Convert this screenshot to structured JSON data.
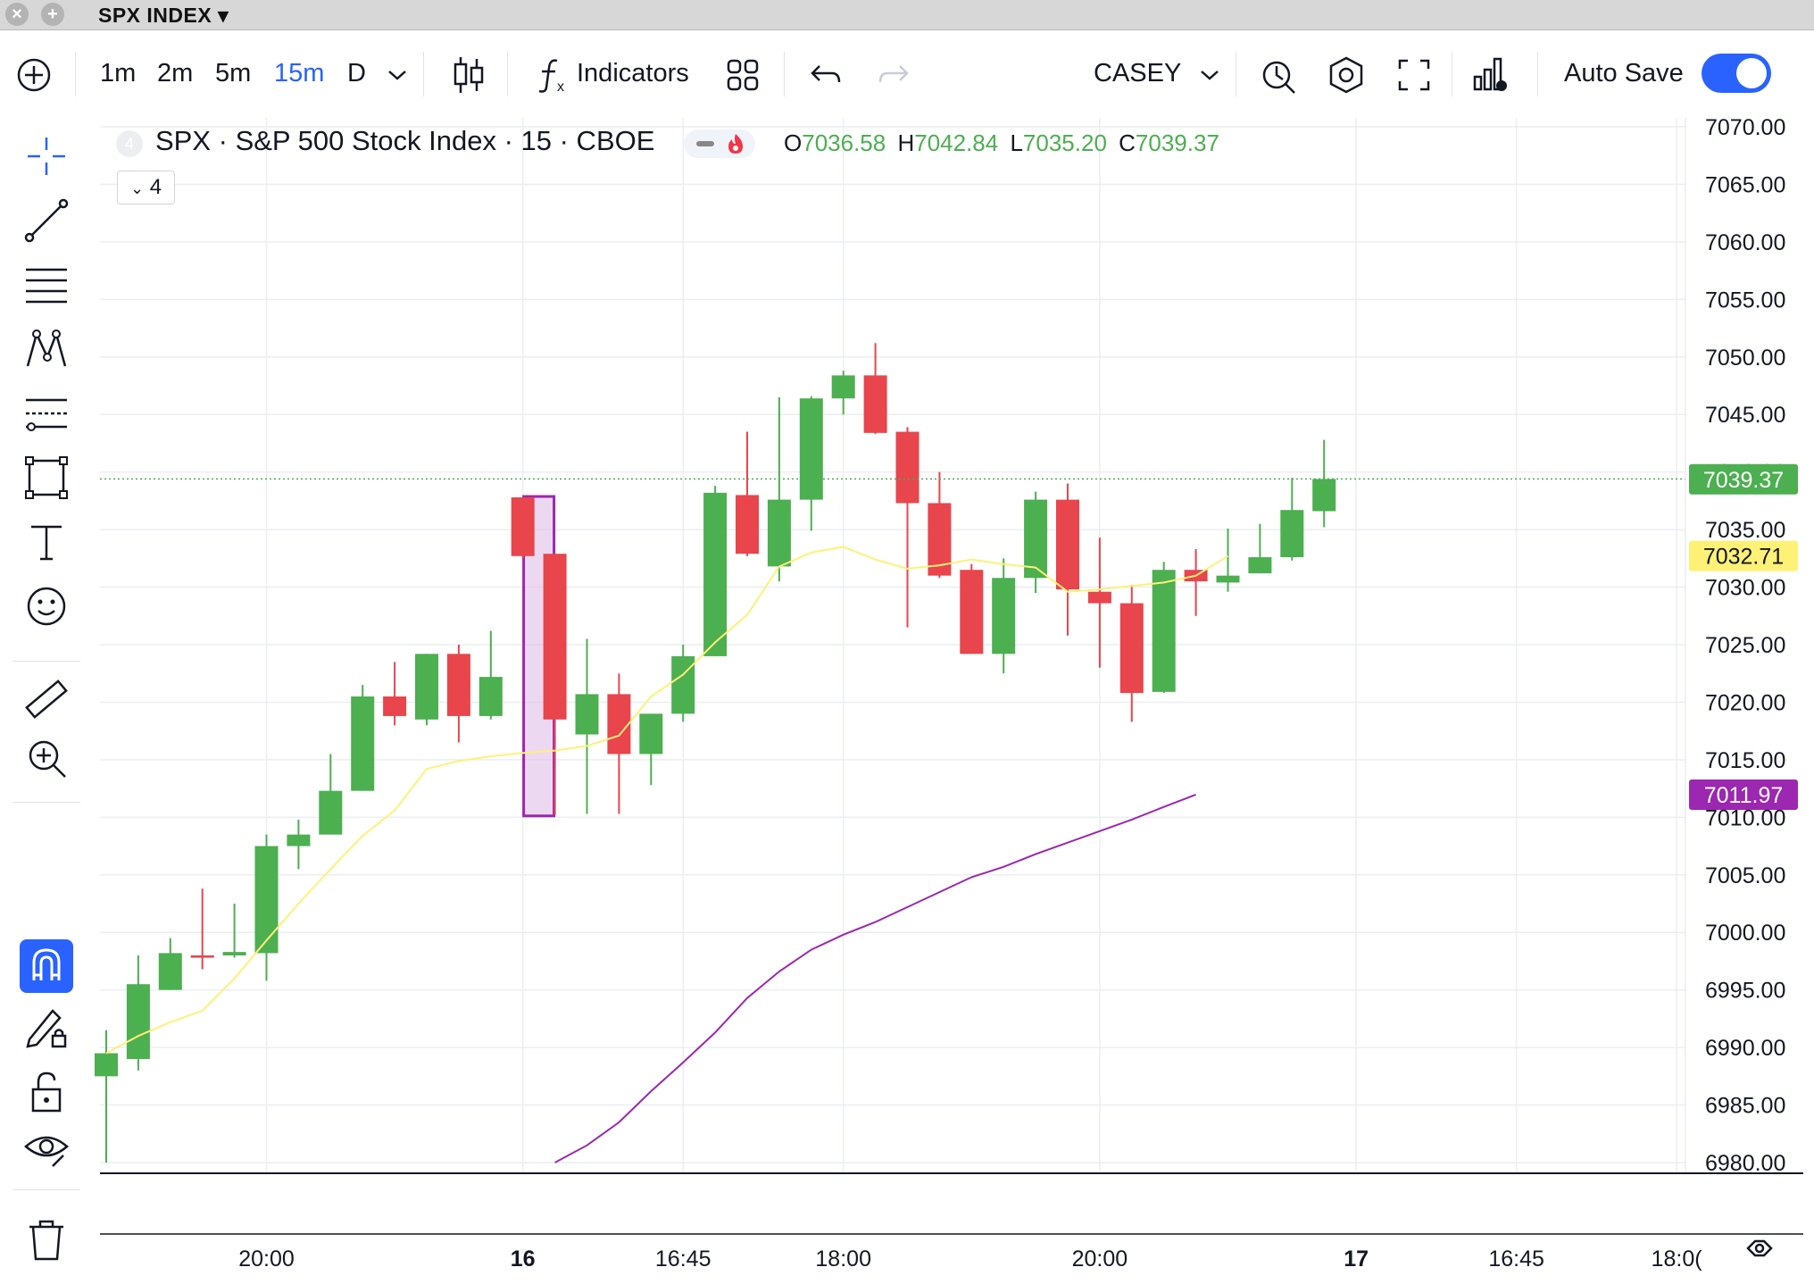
{
  "window": {
    "title": "SPX INDEX"
  },
  "toolbar": {
    "intervals": [
      "1m",
      "2m",
      "5m",
      "15m",
      "D"
    ],
    "active_interval": "15m",
    "indicators_label": "Indicators",
    "layout_name": "CASEY",
    "autosave_label": "Auto Save",
    "autosave_on": true
  },
  "legend": {
    "badge": "4",
    "title": "SPX · S&P 500 Stock Index · 15 · CBOE",
    "o_label": "O",
    "o": "7036.58",
    "h_label": "H",
    "h": "7042.84",
    "l_label": "L",
    "l": "7035.20",
    "c_label": "C",
    "c": "7039.37",
    "collapsed_count": "4"
  },
  "colors": {
    "up": "#4caf50",
    "down": "#e8454d",
    "accent": "#2962ff",
    "ma_fast": "#fff176",
    "ma_slow": "#9c27b0"
  },
  "icons": [
    "plus-circle-icon",
    "candles-icon",
    "function-icon",
    "layout-grid-icon",
    "undo-icon",
    "redo-icon",
    "chevron-down-icon",
    "alert-icon",
    "settings-hex-icon",
    "fullscreen-icon",
    "chart-bars-icon",
    "crosshair-icon",
    "trend-line-icon",
    "parallel-lines-icon",
    "pattern-icon",
    "fib-icon",
    "rectangle-icon",
    "text-icon",
    "emoji-icon",
    "ruler-icon",
    "zoom-in-icon",
    "magnet-icon",
    "pencil-lock-icon",
    "unlock-icon",
    "eye-icon",
    "trash-icon",
    "gear-icon"
  ],
  "chart_data": {
    "type": "candlestick",
    "price_axis": {
      "min": 6980,
      "max": 7070,
      "step": 5,
      "ticks": [
        "7070.00",
        "7065.00",
        "7060.00",
        "7055.00",
        "7050.00",
        "7045.00",
        "7040.00",
        "7035.00",
        "7030.00",
        "7025.00",
        "7020.00",
        "7015.00",
        "7010.00",
        "7005.00",
        "7000.00",
        "6995.00",
        "6990.00",
        "6985.00",
        "6980.00"
      ]
    },
    "time_axis": {
      "labels": [
        {
          "text": "20:00",
          "bar": 5,
          "bold": false
        },
        {
          "text": "16",
          "bar": 13,
          "bold": true
        },
        {
          "text": "16:45",
          "bar": 18,
          "bold": false
        },
        {
          "text": "18:00",
          "bar": 23,
          "bold": false
        },
        {
          "text": "20:00",
          "bar": 31,
          "bold": false
        },
        {
          "text": "17",
          "bar": 39,
          "bold": true
        },
        {
          "text": "16:45",
          "bar": 44,
          "bold": false
        },
        {
          "text": "18:0(",
          "bar": 49,
          "bold": false
        }
      ]
    },
    "last_price_label": "7039.37",
    "ma_fast_label": "7032.71",
    "ma_slow_label": "7011.97",
    "highlight_bars": [
      13,
      14
    ],
    "candles": [
      {
        "o": 6987.5,
        "h": 6991.5,
        "l": 6980.0,
        "c": 6989.5
      },
      {
        "o": 6989.0,
        "h": 6998.0,
        "l": 6988.0,
        "c": 6995.5
      },
      {
        "o": 6995.0,
        "h": 6999.5,
        "l": 6995.0,
        "c": 6998.2
      },
      {
        "o": 6998.0,
        "h": 7003.8,
        "l": 6996.8,
        "c": 6997.8
      },
      {
        "o": 6998.0,
        "h": 7002.5,
        "l": 6997.8,
        "c": 6998.3
      },
      {
        "o": 6998.2,
        "h": 7008.5,
        "l": 6995.8,
        "c": 7007.5
      },
      {
        "o": 7007.5,
        "h": 7009.8,
        "l": 7005.5,
        "c": 7008.5
      },
      {
        "o": 7008.5,
        "h": 7015.5,
        "l": 7008.5,
        "c": 7012.3
      },
      {
        "o": 7012.3,
        "h": 7021.5,
        "l": 7012.3,
        "c": 7020.5
      },
      {
        "o": 7020.5,
        "h": 7023.5,
        "l": 7018.0,
        "c": 7018.8
      },
      {
        "o": 7018.5,
        "h": 7024.2,
        "l": 7018.0,
        "c": 7024.2
      },
      {
        "o": 7024.2,
        "h": 7025.0,
        "l": 7016.5,
        "c": 7018.8
      },
      {
        "o": 7018.8,
        "h": 7026.2,
        "l": 7018.5,
        "c": 7022.2
      },
      {
        "o": 7037.8,
        "h": 7037.8,
        "l": 7032.5,
        "c": 7032.7
      },
      {
        "o": 7032.9,
        "h": 7032.9,
        "l": 7010.2,
        "c": 7018.5
      },
      {
        "o": 7017.2,
        "h": 7025.5,
        "l": 7010.3,
        "c": 7020.7
      },
      {
        "o": 7020.7,
        "h": 7022.5,
        "l": 7010.3,
        "c": 7015.5
      },
      {
        "o": 7015.5,
        "h": 7019.0,
        "l": 7012.8,
        "c": 7019.0
      },
      {
        "o": 7019.0,
        "h": 7025.0,
        "l": 7018.3,
        "c": 7024.0
      },
      {
        "o": 7024.0,
        "h": 7038.8,
        "l": 7024.0,
        "c": 7038.2
      },
      {
        "o": 7038.0,
        "h": 7043.5,
        "l": 7032.7,
        "c": 7032.9
      },
      {
        "o": 7031.8,
        "h": 7046.5,
        "l": 7030.5,
        "c": 7037.6
      },
      {
        "o": 7037.6,
        "h": 7046.6,
        "l": 7034.9,
        "c": 7046.4
      },
      {
        "o": 7046.4,
        "h": 7048.8,
        "l": 7045.0,
        "c": 7048.4
      },
      {
        "o": 7048.4,
        "h": 7051.2,
        "l": 7043.3,
        "c": 7043.4
      },
      {
        "o": 7043.5,
        "h": 7043.9,
        "l": 7026.5,
        "c": 7037.3
      },
      {
        "o": 7037.3,
        "h": 7040.0,
        "l": 7030.8,
        "c": 7031.0
      },
      {
        "o": 7031.5,
        "h": 7032.0,
        "l": 7024.2,
        "c": 7024.2
      },
      {
        "o": 7024.2,
        "h": 7032.5,
        "l": 7022.5,
        "c": 7030.8
      },
      {
        "o": 7030.8,
        "h": 7038.3,
        "l": 7029.5,
        "c": 7037.6
      },
      {
        "o": 7037.6,
        "h": 7039.0,
        "l": 7025.8,
        "c": 7029.8
      },
      {
        "o": 7029.6,
        "h": 7034.3,
        "l": 7023.0,
        "c": 7028.6
      },
      {
        "o": 7028.6,
        "h": 7030.2,
        "l": 7018.3,
        "c": 7020.8
      },
      {
        "o": 7020.9,
        "h": 7032.2,
        "l": 7020.8,
        "c": 7031.5
      },
      {
        "o": 7031.5,
        "h": 7033.3,
        "l": 7027.5,
        "c": 7030.5
      },
      {
        "o": 7030.4,
        "h": 7035.1,
        "l": 7029.6,
        "c": 7031.0
      },
      {
        "o": 7031.2,
        "h": 7035.5,
        "l": 7031.2,
        "c": 7032.6
      },
      {
        "o": 7032.6,
        "h": 7039.5,
        "l": 7032.3,
        "c": 7036.7
      },
      {
        "o": 7036.6,
        "h": 7042.8,
        "l": 7035.2,
        "c": 7039.4
      }
    ],
    "ma_fast": {
      "start": 0,
      "values": [
        6989.5,
        6991.0,
        6992.2,
        6993.2,
        6996.0,
        6999.3,
        7002.5,
        7005.5,
        7008.4,
        7010.6,
        7014.2,
        7014.9,
        7015.3,
        7015.6,
        7015.8,
        7016.2,
        7017.1,
        7020.5,
        7022.4,
        7025.2,
        7027.6,
        7031.8,
        7033.0,
        7033.5,
        7032.4,
        7031.6,
        7031.9,
        7032.4,
        7032.0,
        7031.7,
        7029.6,
        7029.8,
        7030.1,
        7030.4,
        7031.0,
        7032.7
      ]
    },
    "ma_slow": {
      "start": 14,
      "values": [
        6980.0,
        6981.5,
        6983.5,
        6986.2,
        6988.7,
        6991.3,
        6994.3,
        6996.6,
        6998.5,
        6999.8,
        7000.9,
        7002.2,
        7003.5,
        7004.8,
        7005.7,
        7006.8,
        7007.8,
        7008.8,
        7009.8,
        7010.9,
        7011.97
      ]
    }
  }
}
